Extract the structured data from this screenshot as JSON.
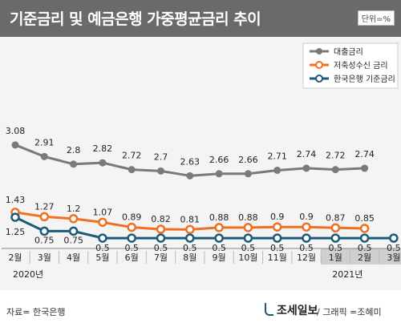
{
  "header": {
    "title": "기준금리 및 예금은행 가중평균금리 추이",
    "unit": "단위=%"
  },
  "footer": {
    "source": "자료= 한국은행",
    "brand": "조세일보",
    "credit": "/ 그래픽 =조혜미"
  },
  "chart_data": {
    "type": "line",
    "categories": [
      "2월",
      "3월",
      "4월",
      "5월",
      "6월",
      "7월",
      "8월",
      "9월",
      "10월",
      "11월",
      "12월",
      "1월",
      "2월",
      "3월"
    ],
    "year_labels": [
      "2020년",
      "2021년"
    ],
    "series": [
      {
        "name": "대출금리",
        "color": "#7a7a7a",
        "values": [
          3.08,
          2.91,
          2.8,
          2.82,
          2.72,
          2.7,
          2.63,
          2.66,
          2.66,
          2.71,
          2.74,
          2.72,
          2.74,
          null
        ]
      },
      {
        "name": "저축성수신 금리",
        "color": "#ef7021",
        "values": [
          1.43,
          1.27,
          1.2,
          1.07,
          0.89,
          0.82,
          0.81,
          0.88,
          0.88,
          0.9,
          0.9,
          0.87,
          0.85,
          null
        ]
      },
      {
        "name": "한국은행 기준금리",
        "color": "#1d5a7a",
        "values": [
          1.25,
          0.75,
          0.75,
          0.5,
          0.5,
          0.5,
          0.5,
          0.5,
          0.5,
          0.5,
          0.5,
          0.5,
          0.5,
          0.5
        ]
      }
    ],
    "ylabel": "",
    "xlabel": "",
    "grid": false,
    "legend_position": "top-right"
  }
}
